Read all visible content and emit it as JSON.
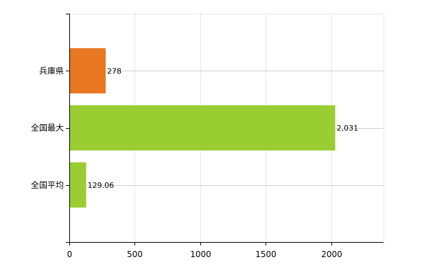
{
  "chart_data": {
    "type": "bar",
    "orientation": "horizontal",
    "categories": [
      "兵庫県",
      "全国最大",
      "全国平均"
    ],
    "values": [
      278,
      2031,
      129.06
    ],
    "value_labels": [
      "278",
      "2,031",
      "129.06"
    ],
    "bar_colors": [
      "#e87722",
      "#9acd32",
      "#9acd32"
    ],
    "xlim": [
      0,
      2400
    ],
    "x_ticks": [
      0,
      500,
      1000,
      1500,
      2000
    ],
    "x_tick_labels": [
      "0",
      "500",
      "1000",
      "1500",
      "2000"
    ],
    "grid": true,
    "title": "",
    "xlabel": "",
    "ylabel": ""
  }
}
